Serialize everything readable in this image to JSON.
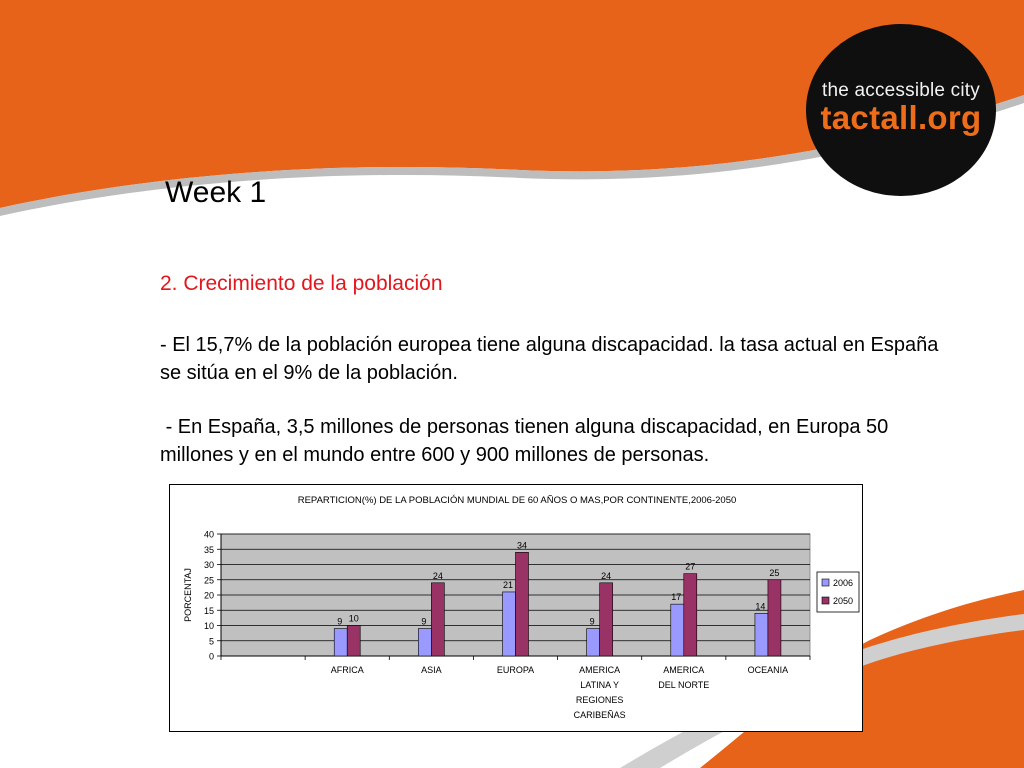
{
  "slide": {
    "logo": {
      "line1": "the accessible city",
      "line2": "tactall.org"
    },
    "title": "Week 1",
    "heading": "2. Crecimiento de la población",
    "para1": "- El 15,7% de la población europea tiene alguna discapacidad. la tasa actual en España se sitúa en el 9% de la población.",
    "para2": " - En España, 3,5 millones de personas tienen alguna discapacidad, en Europa 50 millones y en el mundo entre 600 y 900 millones de personas.",
    "colors": {
      "orange": "#e8631a",
      "heading_red": "#e3161d",
      "logo_black": "#0f0f0f"
    }
  },
  "chart_data": {
    "type": "bar",
    "title": "REPARTICION(%) DE LA POBLACIÓN MUNDIAL DE 60 AÑOS O MAS,POR CONTINENTE,2006-2050",
    "ylabel": "PORCENTAJ",
    "xlabel": "",
    "ylim": [
      0,
      40
    ],
    "yticks": [
      0,
      5,
      10,
      15,
      20,
      25,
      30,
      35,
      40
    ],
    "grid": true,
    "legend": "right",
    "categories": [
      [
        ""
      ],
      [
        "AFRICA"
      ],
      [
        "ASIA"
      ],
      [
        "EUROPA"
      ],
      [
        "AMERICA",
        "LATINA Y",
        "REGIONES",
        "CARIBEÑAS"
      ],
      [
        "AMERICA",
        "DEL NORTE"
      ],
      [
        "OCEANIA"
      ]
    ],
    "series": [
      {
        "name": "2006",
        "color": "#9999ff",
        "values": [
          null,
          9,
          9,
          21,
          9,
          17,
          14
        ]
      },
      {
        "name": "2050",
        "color": "#993366",
        "values": [
          null,
          10,
          24,
          34,
          24,
          27,
          25
        ]
      }
    ],
    "plot_background": "#c0c0c0"
  }
}
